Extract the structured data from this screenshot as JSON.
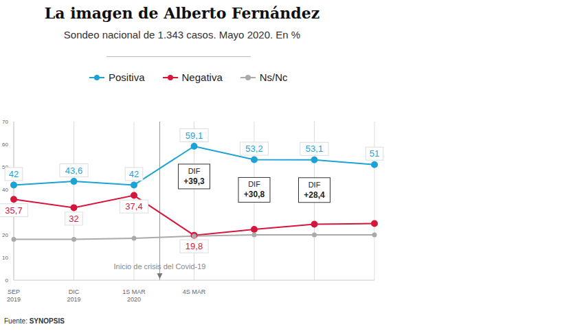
{
  "chart_data": {
    "type": "line",
    "title": "La imagen de Alberto Fernández",
    "subtitle": "Sondeo nacional de 1.343 casos. Mayo 2020. En %",
    "source": "Fuente: SYNOPSIS",
    "categories": [
      "SEP 2019",
      "DIC 2019",
      "1S MAR 2020",
      "4S MAR",
      null,
      null,
      null
    ],
    "series": [
      {
        "name": "Positiva",
        "color": "#1ba3d6",
        "marker": "circle",
        "values": [
          42,
          43.6,
          42,
          59.1,
          53.2,
          53.1,
          51
        ],
        "value_labels": [
          "42",
          "43,6",
          "42",
          "59,1",
          "53,2",
          "53,1",
          "51"
        ]
      },
      {
        "name": "Negativa",
        "color": "#d6163c",
        "marker": "circle",
        "values": [
          35.7,
          32,
          37.4,
          19.8,
          22.4,
          24.7,
          25
        ],
        "value_labels": [
          "35,7",
          "32",
          "37,4",
          "19,8",
          null,
          null,
          null
        ]
      },
      {
        "name": "Ns/Nc",
        "color": "#aaaaaa",
        "marker": "circle",
        "values": [
          18,
          18,
          18.5,
          19.5,
          20,
          20,
          20
        ]
      }
    ],
    "differences": {
      "label": "DIF",
      "values": [
        null,
        null,
        null,
        39.3,
        30.8,
        28.4,
        null
      ],
      "value_labels": [
        null,
        null,
        null,
        "+39,3",
        "+30,8",
        "+28,4",
        null
      ]
    },
    "annotations": [
      {
        "text": "Inicio de crisis del Covid-19",
        "x": 2.5
      }
    ],
    "ylim": [
      0,
      70
    ],
    "yticks": [
      0,
      10,
      20,
      30,
      40,
      50,
      60,
      70
    ],
    "grid": "x",
    "legend": "top",
    "data_labels": true
  }
}
